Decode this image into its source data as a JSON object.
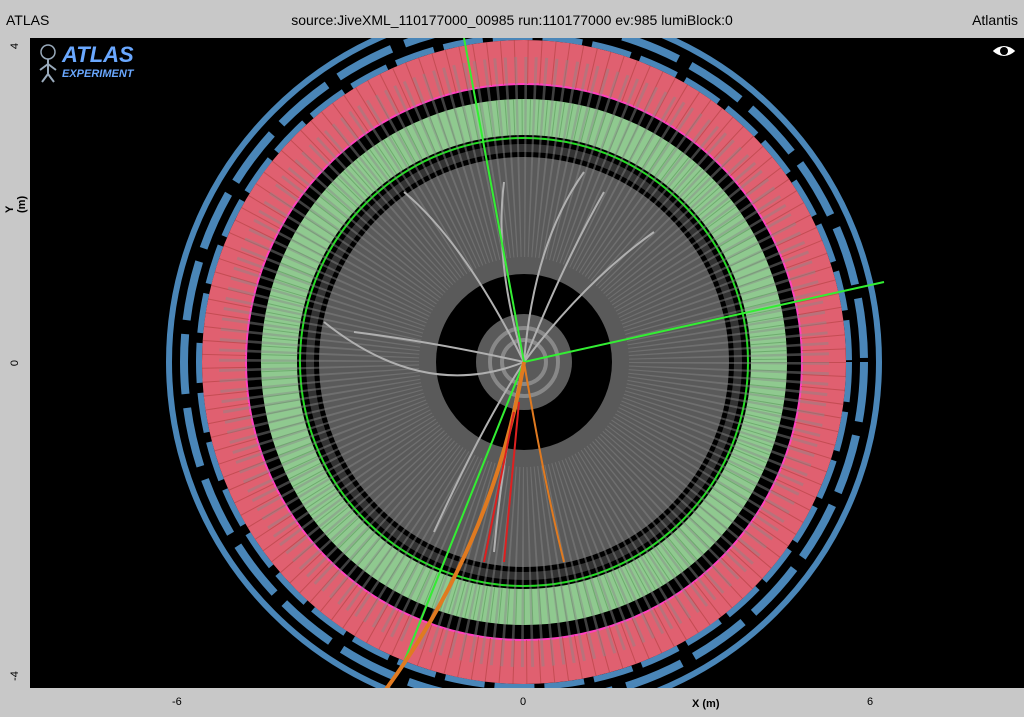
{
  "title_bar": {
    "left": "ATLAS",
    "center": "source:JiveXML_110177000_00985 run:110177000 ev:985 lumiBlock:0",
    "right": "Atlantis"
  },
  "logo": {
    "line1": "ATLAS",
    "line2": "EXPERIMENT"
  },
  "axes": {
    "y_label": "Y (m)",
    "y_ticks": [
      "4",
      "0",
      "-4"
    ],
    "x_label": "X (m)",
    "x_ticks": [
      "-6",
      "0",
      "6"
    ]
  },
  "colors": {
    "muon": "#4a86b8",
    "hcal": "#d46a6a",
    "ecal": "#8fc98f",
    "inner": "#5a5a5a",
    "track": "#b0b0b0",
    "track_green": "#33ee33",
    "track_orange": "#e07a20",
    "track_red": "#dd2020"
  },
  "icons": {
    "eye": "eye-icon",
    "logo": "atlas-logo"
  }
}
